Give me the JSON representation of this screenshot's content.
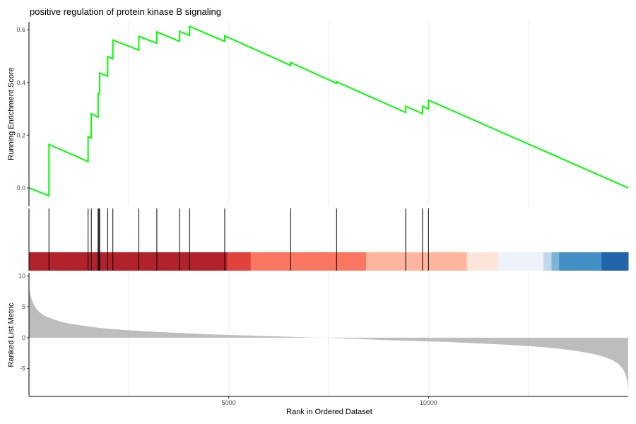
{
  "chart_data": [
    {
      "type": "line",
      "panel": "running-enrichment-score",
      "title": "positive regulation of protein kinase B signaling",
      "xlabel": "",
      "ylabel": "Running Enrichment Score",
      "xlim": [
        0,
        15000
      ],
      "ylim": [
        -0.07,
        0.63
      ],
      "yticks": [
        0.0,
        0.2,
        0.4,
        0.6
      ],
      "ytick_labels": [
        "0.0",
        "0.2",
        "0.4",
        "0.6"
      ],
      "grid": "vertical-major",
      "series": [
        {
          "color": "#00ff00",
          "x": [
            0,
            500,
            500,
            1480,
            1480,
            1560,
            1560,
            1730,
            1730,
            1750,
            1750,
            1770,
            1770,
            1970,
            1970,
            2100,
            2100,
            2750,
            2750,
            3200,
            3200,
            3770,
            3770,
            4020,
            4020,
            4900,
            4900,
            6550,
            6550,
            7700,
            7700,
            9430,
            9430,
            9850,
            9850,
            10000,
            10000,
            15000
          ],
          "y": [
            0.0,
            -0.03,
            0.165,
            0.1,
            0.195,
            0.19,
            0.282,
            0.268,
            0.355,
            0.354,
            0.36,
            0.36,
            0.436,
            0.424,
            0.498,
            0.49,
            0.561,
            0.523,
            0.575,
            0.549,
            0.592,
            0.556,
            0.594,
            0.579,
            0.613,
            0.556,
            0.577,
            0.465,
            0.476,
            0.397,
            0.403,
            0.286,
            0.31,
            0.282,
            0.31,
            0.3,
            0.333,
            0.0
          ]
        }
      ]
    },
    {
      "type": "rug",
      "panel": "gene-set-hits",
      "xlim": [
        0,
        15000
      ],
      "hit_positions": [
        500,
        1480,
        1560,
        1730,
        1750,
        1770,
        1970,
        2100,
        2750,
        3200,
        3770,
        4020,
        4900,
        6550,
        7700,
        9430,
        9850,
        10000
      ],
      "color_bands": [
        {
          "x0": 0,
          "x1": 4960,
          "color": "#b2222a"
        },
        {
          "x0": 4960,
          "x1": 5550,
          "color": "#e2423c"
        },
        {
          "x0": 5550,
          "x1": 8440,
          "color": "#fa7660"
        },
        {
          "x0": 8440,
          "x1": 10960,
          "color": "#fdb59d"
        },
        {
          "x0": 10960,
          "x1": 11750,
          "color": "#fde5da"
        },
        {
          "x0": 11750,
          "x1": 12880,
          "color": "#eef3fb"
        },
        {
          "x0": 12880,
          "x1": 13080,
          "color": "#c0d8ea"
        },
        {
          "x0": 13080,
          "x1": 13270,
          "color": "#7db3d7"
        },
        {
          "x0": 13270,
          "x1": 14330,
          "color": "#4290c6"
        },
        {
          "x0": 14330,
          "x1": 15000,
          "color": "#2064aa"
        }
      ]
    },
    {
      "type": "area",
      "panel": "ranked-list-metric",
      "xlabel": "Rank in Ordered Dataset",
      "ylabel": "Ranked List Metric",
      "xlim": [
        0,
        15000
      ],
      "ylim": [
        -9.5,
        10.5
      ],
      "xticks": [
        5000,
        10000
      ],
      "xtick_labels": [
        "5000",
        "10000"
      ],
      "yticks": [
        10,
        5,
        0,
        -5
      ],
      "ytick_labels": [
        "10",
        "5",
        "0",
        "-5"
      ],
      "fill_color": "#bdbdbd",
      "x": [
        0,
        30,
        80,
        150,
        250,
        400,
        600,
        800,
        1000,
        1300,
        1600,
        2000,
        2500,
        3000,
        3500,
        4000,
        4500,
        5000,
        5500,
        6000,
        6500,
        7000,
        7400,
        7800,
        8200,
        8600,
        9000,
        9500,
        10000,
        10500,
        11000,
        11500,
        12000,
        12500,
        13000,
        13500,
        13800,
        14100,
        14400,
        14600,
        14750,
        14850,
        14920,
        14970,
        15000
      ],
      "y": [
        8.0,
        7.0,
        6.0,
        5.0,
        4.2,
        3.5,
        3.0,
        2.6,
        2.3,
        2.0,
        1.7,
        1.45,
        1.2,
        1.0,
        0.85,
        0.7,
        0.55,
        0.45,
        0.35,
        0.25,
        0.15,
        0.05,
        0.0,
        -0.1,
        -0.2,
        -0.3,
        -0.4,
        -0.5,
        -0.6,
        -0.7,
        -0.85,
        -1.0,
        -1.15,
        -1.35,
        -1.6,
        -1.95,
        -2.25,
        -2.6,
        -3.1,
        -3.6,
        -4.2,
        -4.9,
        -5.7,
        -6.8,
        -8.5
      ]
    }
  ]
}
